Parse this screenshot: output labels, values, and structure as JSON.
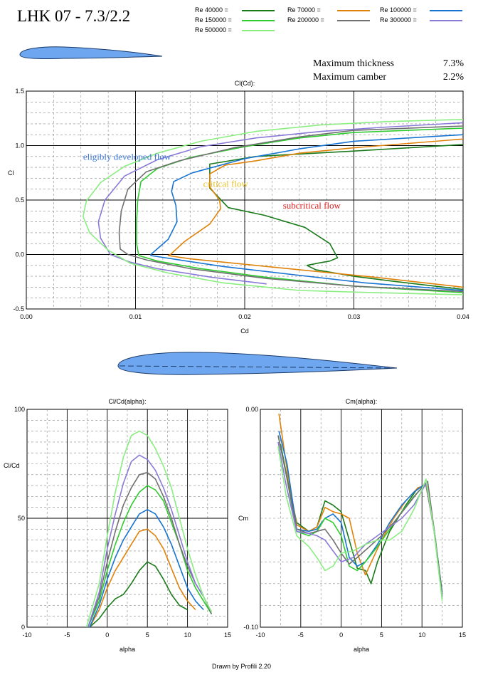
{
  "header": {
    "title": "LHK  07 - 7.3/2.2"
  },
  "legend": [
    {
      "name": "Re 40000 =",
      "color": "#1a7a1a"
    },
    {
      "name": "Re 70000 =",
      "color": "#e0820a"
    },
    {
      "name": "Re 100000 =",
      "color": "#1874d2"
    },
    {
      "name": "Re 150000 =",
      "color": "#2ecc2e"
    },
    {
      "name": "Re 200000 =",
      "color": "#707070"
    },
    {
      "name": "Re 300000 =",
      "color": "#8a7ad6"
    },
    {
      "name": "Re 500000 =",
      "color": "#8aee80"
    }
  ],
  "properties": [
    {
      "label": "Maximum thickness",
      "value": "7.3%"
    },
    {
      "label": "Maximum camber",
      "value": "2.2%"
    }
  ],
  "footer": {
    "credit": "Drawn by Profili 2.20"
  },
  "chart_data": [
    {
      "type": "line",
      "title": "Cl(Cd):",
      "xlabel": "Cd",
      "ylabel": "Cl",
      "xlim": [
        0.0,
        0.04
      ],
      "ylim": [
        -0.5,
        1.5
      ],
      "xticks": [
        "0.00",
        "0.01",
        "0.02",
        "0.03",
        "0.04"
      ],
      "yticks": [
        "-0.5",
        "0.0",
        "0.5",
        "1.0",
        "1.5"
      ],
      "grid": true,
      "annotations": [
        {
          "text": "eligibly developed flow",
          "x": 0.0052,
          "y": 0.87,
          "color": "#3c78d8"
        },
        {
          "text": "critical  flow",
          "x": 0.0162,
          "y": 0.62,
          "color": "#e8c02a"
        },
        {
          "text": "subcritical flow",
          "x": 0.0235,
          "y": 0.42,
          "color": "#e02020"
        }
      ],
      "series": [
        {
          "name": "Re 40000 =",
          "color": "#1a7a1a",
          "x": [
            0.04,
            0.034,
            0.03,
            0.0265,
            0.0257,
            0.0267,
            0.0278,
            0.0285,
            0.0278,
            0.0255,
            0.0218,
            0.0185,
            0.0168,
            0.0168,
            0.021,
            0.03,
            0.04
          ],
          "y": [
            -0.32,
            -0.25,
            -0.2,
            -0.14,
            -0.1,
            -0.08,
            -0.06,
            -0.03,
            0.1,
            0.25,
            0.36,
            0.43,
            0.61,
            0.83,
            0.9,
            0.95,
            1.01
          ]
        },
        {
          "name": "Re 70000 =",
          "color": "#e0820a",
          "x": [
            0.04,
            0.032,
            0.025,
            0.019,
            0.015,
            0.013,
            0.0132,
            0.0145,
            0.0168,
            0.0178,
            0.0177,
            0.0168,
            0.0168,
            0.0182,
            0.021,
            0.025,
            0.03,
            0.04
          ],
          "y": [
            -0.3,
            -0.21,
            -0.14,
            -0.08,
            -0.04,
            -0.01,
            0.0,
            0.12,
            0.28,
            0.42,
            0.5,
            0.62,
            0.74,
            0.82,
            0.86,
            0.93,
            0.98,
            1.06
          ]
        },
        {
          "name": "Re 100000 =",
          "color": "#1874d2",
          "x": [
            0.04,
            0.031,
            0.024,
            0.018,
            0.014,
            0.0114,
            0.0114,
            0.013,
            0.0138,
            0.0137,
            0.0133,
            0.0135,
            0.0152,
            0.02,
            0.025,
            0.03,
            0.04
          ],
          "y": [
            -0.33,
            -0.26,
            -0.18,
            -0.11,
            -0.05,
            -0.01,
            0.0,
            0.14,
            0.3,
            0.45,
            0.58,
            0.67,
            0.75,
            0.88,
            0.97,
            1.04,
            1.1
          ]
        },
        {
          "name": "Re 150000 =",
          "color": "#2ecc2e",
          "x": [
            0.04,
            0.03,
            0.022,
            0.016,
            0.012,
            0.0103,
            0.0101,
            0.0101,
            0.0102,
            0.0105,
            0.012,
            0.015,
            0.02,
            0.025,
            0.03,
            0.04
          ],
          "y": [
            -0.35,
            -0.29,
            -0.21,
            -0.13,
            -0.06,
            -0.01,
            0.1,
            0.3,
            0.5,
            0.67,
            0.79,
            0.89,
            0.99,
            1.07,
            1.12,
            1.16
          ]
        },
        {
          "name": "Re 200000 =",
          "color": "#707070",
          "x": [
            0.04,
            0.03,
            0.022,
            0.015,
            0.011,
            0.0093,
            0.0086,
            0.0085,
            0.0087,
            0.0093,
            0.011,
            0.014,
            0.019,
            0.025,
            0.03,
            0.04
          ],
          "y": [
            -0.34,
            -0.29,
            -0.22,
            -0.13,
            -0.05,
            0.0,
            0.05,
            0.2,
            0.4,
            0.6,
            0.76,
            0.86,
            0.98,
            1.08,
            1.14,
            1.18
          ]
        },
        {
          "name": "Re 300000 =",
          "color": "#8a7ad6",
          "x": [
            0.022,
            0.017,
            0.012,
            0.0095,
            0.0077,
            0.0068,
            0.0066,
            0.0072,
            0.009,
            0.012,
            0.016,
            0.021,
            0.027,
            0.033,
            0.04
          ],
          "y": [
            -0.27,
            -0.21,
            -0.13,
            -0.07,
            0.0,
            0.15,
            0.3,
            0.5,
            0.72,
            0.87,
            0.99,
            1.07,
            1.13,
            1.17,
            1.21
          ]
        },
        {
          "name": "Re 500000 =",
          "color": "#8aee80",
          "x": [
            0.04,
            0.032,
            0.025,
            0.018,
            0.013,
            0.0095,
            0.0075,
            0.0058,
            0.0052,
            0.0055,
            0.0068,
            0.009,
            0.012,
            0.016,
            0.021,
            0.027,
            0.033,
            0.04
          ],
          "y": [
            -0.37,
            -0.35,
            -0.33,
            -0.26,
            -0.17,
            -0.08,
            0.04,
            0.2,
            0.35,
            0.49,
            0.66,
            0.81,
            0.93,
            1.04,
            1.13,
            1.19,
            1.22,
            1.24
          ]
        }
      ]
    },
    {
      "type": "line",
      "title": "Cl/Cd(alpha):",
      "xlabel": "alpha",
      "ylabel": "Cl/Cd",
      "xlim": [
        -10,
        15
      ],
      "ylim": [
        0,
        100
      ],
      "xticks": [
        "-10",
        "-5",
        "0",
        "5",
        "10",
        "15"
      ],
      "yticks": [
        "0",
        "50",
        "100"
      ],
      "grid": true,
      "series": [
        {
          "name": "Re 40000 =",
          "color": "#1a7a1a",
          "x": [
            -2.2,
            -1,
            0,
            1,
            2,
            3,
            4,
            5,
            6,
            7,
            8,
            9,
            10
          ],
          "y": [
            0,
            4,
            9,
            13,
            15,
            20,
            26,
            30,
            28,
            22,
            15,
            10,
            8
          ]
        },
        {
          "name": "Re 70000 =",
          "color": "#e0820a",
          "x": [
            -2.2,
            -1,
            0,
            1,
            2,
            3,
            4,
            5,
            6,
            7,
            8,
            9,
            10,
            11
          ],
          "y": [
            0,
            8,
            18,
            26,
            32,
            38,
            44,
            45,
            42,
            36,
            27,
            18,
            12,
            8
          ]
        },
        {
          "name": "Re 100000 =",
          "color": "#1874d2",
          "x": [
            -2.2,
            -1,
            0,
            1,
            2,
            3,
            4,
            5,
            6,
            7,
            8,
            9,
            10,
            11,
            12
          ],
          "y": [
            0,
            10,
            22,
            32,
            40,
            46,
            52,
            54,
            52,
            46,
            38,
            28,
            18,
            12,
            8
          ]
        },
        {
          "name": "Re 150000 =",
          "color": "#2ecc2e",
          "x": [
            -2.4,
            -1,
            0,
            1,
            2,
            3,
            4,
            5,
            6,
            7,
            8,
            9,
            10,
            11,
            12,
            13
          ],
          "y": [
            0,
            12,
            26,
            38,
            48,
            56,
            62,
            65,
            63,
            58,
            48,
            38,
            26,
            18,
            12,
            6
          ]
        },
        {
          "name": "Re 200000 =",
          "color": "#707070",
          "x": [
            -2.4,
            -1,
            0,
            1,
            2,
            3,
            4,
            5,
            6,
            7,
            8,
            9,
            10,
            11,
            12,
            13
          ],
          "y": [
            0,
            14,
            30,
            44,
            56,
            64,
            70,
            71,
            68,
            60,
            50,
            38,
            28,
            20,
            14,
            6
          ]
        },
        {
          "name": "Re 300000 =",
          "color": "#8a7ad6",
          "x": [
            -2.4,
            -1,
            0,
            1,
            2,
            3,
            4,
            5,
            6,
            7,
            8,
            9,
            10,
            11,
            12,
            13
          ],
          "y": [
            0,
            16,
            36,
            52,
            66,
            76,
            79,
            77,
            72,
            64,
            54,
            42,
            30,
            20,
            14,
            7
          ]
        },
        {
          "name": "Re 500000 =",
          "color": "#8aee80",
          "x": [
            -2.6,
            -1,
            0,
            1,
            2,
            3,
            4,
            5,
            6,
            7,
            8,
            9,
            10,
            11,
            12,
            13
          ],
          "y": [
            0,
            20,
            42,
            62,
            78,
            88,
            90,
            88,
            82,
            74,
            64,
            50,
            36,
            24,
            14,
            7
          ]
        }
      ]
    },
    {
      "type": "line",
      "title": "Cm(alpha):",
      "xlabel": "alpha",
      "ylabel": "Cm",
      "xlim": [
        -10,
        15
      ],
      "ylim": [
        -0.1,
        0.0
      ],
      "xticks": [
        "-10",
        "-5",
        "0",
        "5",
        "10",
        "15"
      ],
      "yticks": [
        "-0.10",
        "0.00"
      ],
      "grid": true,
      "series": [
        {
          "name": "Re 40000 =",
          "color": "#1a7a1a",
          "x": [
            -7.5,
            -6.5,
            -5.5,
            -4,
            -3,
            -2,
            -1,
            0,
            1,
            2,
            3,
            3.7,
            4.5,
            6,
            8,
            9.5,
            10.5,
            11.5,
            12.5
          ],
          "y": [
            -0.016,
            -0.035,
            -0.052,
            -0.056,
            -0.054,
            -0.042,
            -0.044,
            -0.047,
            -0.06,
            -0.073,
            -0.074,
            -0.08,
            -0.07,
            -0.056,
            -0.044,
            -0.036,
            -0.035,
            -0.055,
            -0.084
          ]
        },
        {
          "name": "Re 70000 =",
          "color": "#e0820a",
          "x": [
            -7.7,
            -6.6,
            -5.5,
            -4,
            -3,
            -2,
            -1,
            0,
            1,
            2,
            3,
            4,
            5,
            6.5,
            8,
            9.5,
            10.5,
            11.5,
            12.5
          ],
          "y": [
            -0.002,
            -0.03,
            -0.053,
            -0.056,
            -0.054,
            -0.045,
            -0.047,
            -0.048,
            -0.05,
            -0.066,
            -0.076,
            -0.068,
            -0.06,
            -0.05,
            -0.042,
            -0.036,
            -0.035,
            -0.055,
            -0.085
          ]
        },
        {
          "name": "Re 100000 =",
          "color": "#1874d2",
          "x": [
            -7.7,
            -6.7,
            -5.5,
            -4,
            -3,
            -2,
            -1,
            0,
            1,
            2,
            3,
            4.5,
            6,
            7.5,
            9,
            10.5,
            11.5,
            12.5
          ],
          "y": [
            -0.01,
            -0.025,
            -0.055,
            -0.056,
            -0.055,
            -0.05,
            -0.048,
            -0.052,
            -0.068,
            -0.072,
            -0.07,
            -0.062,
            -0.052,
            -0.044,
            -0.038,
            -0.034,
            -0.055,
            -0.085
          ]
        },
        {
          "name": "Re 150000 =",
          "color": "#2ecc2e",
          "x": [
            -7.8,
            -6.8,
            -5.5,
            -4,
            -3,
            -2,
            -1,
            0,
            1,
            2,
            3,
            4.5,
            6,
            7.5,
            9,
            10.5,
            11.5,
            12.5
          ],
          "y": [
            -0.012,
            -0.03,
            -0.056,
            -0.058,
            -0.056,
            -0.05,
            -0.052,
            -0.058,
            -0.072,
            -0.074,
            -0.07,
            -0.063,
            -0.055,
            -0.047,
            -0.04,
            -0.034,
            -0.055,
            -0.086
          ]
        },
        {
          "name": "Re 200000 =",
          "color": "#707070",
          "x": [
            -7.8,
            -6.8,
            -5.5,
            -4,
            -3,
            -2,
            -1,
            0,
            1,
            2,
            3.5,
            5,
            6.5,
            8,
            9.5,
            10.7,
            11.5,
            12.5
          ],
          "y": [
            -0.012,
            -0.03,
            -0.055,
            -0.057,
            -0.056,
            -0.055,
            -0.06,
            -0.066,
            -0.071,
            -0.068,
            -0.063,
            -0.058,
            -0.052,
            -0.045,
            -0.038,
            -0.033,
            -0.055,
            -0.086
          ]
        },
        {
          "name": "Re 300000 =",
          "color": "#8a7ad6",
          "x": [
            -7.8,
            -6.8,
            -5.5,
            -4,
            -3,
            -2,
            -1,
            0,
            1.5,
            3,
            4.5,
            6,
            7.5,
            9,
            10.5,
            11.5,
            12.5
          ],
          "y": [
            -0.015,
            -0.035,
            -0.056,
            -0.057,
            -0.058,
            -0.06,
            -0.065,
            -0.07,
            -0.068,
            -0.062,
            -0.058,
            -0.054,
            -0.05,
            -0.044,
            -0.034,
            -0.056,
            -0.087
          ]
        },
        {
          "name": "Re 500000 =",
          "color": "#8aee80",
          "x": [
            -7.8,
            -6.8,
            -5.5,
            -4,
            -3,
            -2,
            -1,
            0,
            1.5,
            3,
            4.5,
            6,
            7.5,
            9,
            10.5,
            11.5,
            12.5
          ],
          "y": [
            -0.017,
            -0.04,
            -0.058,
            -0.063,
            -0.068,
            -0.074,
            -0.072,
            -0.066,
            -0.065,
            -0.062,
            -0.06,
            -0.06,
            -0.056,
            -0.046,
            -0.032,
            -0.056,
            -0.088
          ]
        }
      ]
    }
  ]
}
